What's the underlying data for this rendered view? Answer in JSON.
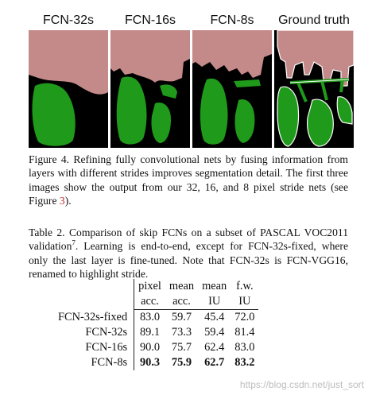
{
  "figure": {
    "panels": [
      {
        "label": "FCN-32s"
      },
      {
        "label": "FCN-16s"
      },
      {
        "label": "FCN-8s"
      },
      {
        "label": "Ground truth"
      }
    ],
    "colors": {
      "background": "#000000",
      "person": "#c48a89",
      "bike": "#1f9a1a",
      "boundary": "#ffffff"
    },
    "caption": {
      "prefix": "Figure 4.  Refining fully convolutional nets by fusing information from layers with different strides improves segmentation detail. The first three images show the output from our 32, 16, and 8 pixel stride nets (see Figure ",
      "ref": "3",
      "suffix": ")."
    }
  },
  "table": {
    "caption": {
      "prefix": "Table 2.   Comparison of skip FCNs on a subset of PASCAL VOC2011 validation",
      "footnote": "7",
      "suffix": ". Learning is end-to-end, except for FCN-32s-fixed, where only the last layer is fine-tuned. Note that FCN-32s is FCN-VGG16, renamed to highlight stride."
    },
    "header_top": [
      "pixel",
      "mean",
      "mean",
      "f.w."
    ],
    "header_bottom": [
      "acc.",
      "acc.",
      "IU",
      "IU"
    ],
    "rows": [
      {
        "method": "FCN-32s-fixed",
        "values": [
          "83.0",
          "59.7",
          "45.4",
          "72.0"
        ]
      },
      {
        "method": "FCN-32s",
        "values": [
          "89.1",
          "73.3",
          "59.4",
          "81.4"
        ]
      },
      {
        "method": "FCN-16s",
        "values": [
          "90.0",
          "75.7",
          "62.4",
          "83.0"
        ]
      },
      {
        "method": "FCN-8s",
        "values": [
          "90.3",
          "75.9",
          "62.7",
          "83.2"
        ]
      }
    ]
  },
  "watermark": "https://blog.csdn.net/just_sort"
}
